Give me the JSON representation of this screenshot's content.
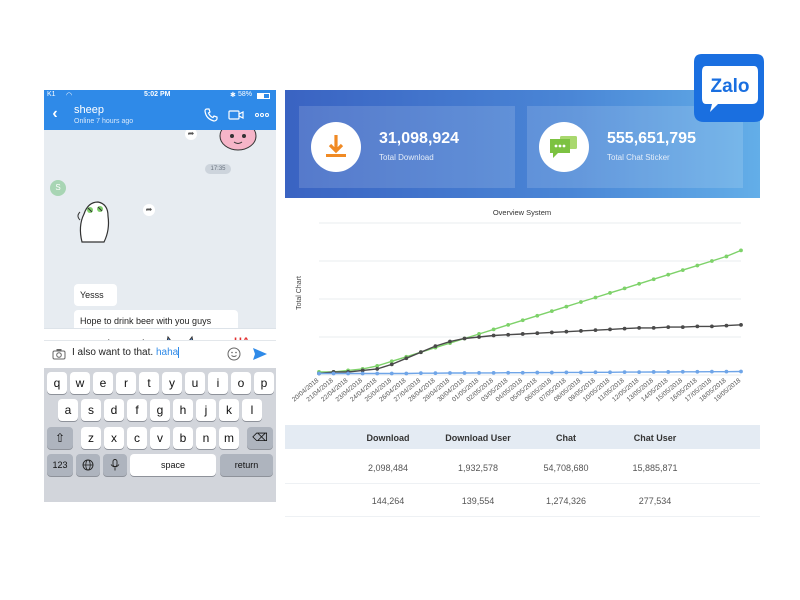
{
  "phone": {
    "status": {
      "carrier": "K1",
      "time": "5:02 PM",
      "battery": "58%"
    },
    "contact": {
      "name": "sheep",
      "status": "Online 7 hours ago"
    },
    "chat": {
      "timestamp": "17:35",
      "avatar_letter": "S",
      "messages": [
        "Yesss",
        "Hope to drink beer with you guys"
      ]
    },
    "input": {
      "text": "I also want to that.",
      "highlight": "haha"
    },
    "keyboard": {
      "row1": [
        "q",
        "w",
        "e",
        "r",
        "t",
        "y",
        "u",
        "i",
        "o",
        "p"
      ],
      "row2": [
        "a",
        "s",
        "d",
        "f",
        "g",
        "h",
        "j",
        "k",
        "l"
      ],
      "row3": [
        "z",
        "x",
        "c",
        "v",
        "b",
        "n",
        "m"
      ],
      "num_key": "123",
      "space_key": "space",
      "return_key": "return"
    }
  },
  "stats": [
    {
      "value": "31,098,924",
      "label": "Total Download",
      "icon": "download-icon"
    },
    {
      "value": "555,651,795",
      "label": "Total Chat Sticker",
      "icon": "chat-bubble-icon"
    }
  ],
  "logo": {
    "text": "Zalo",
    "color": "#1a6fe0"
  },
  "chart_data": {
    "type": "line",
    "title": "Overview System",
    "ylabel": "Total Chart",
    "x": [
      "20/04/2018",
      "21/04/2018",
      "22/04/2018",
      "23/04/2018",
      "24/04/2018",
      "25/04/2018",
      "26/04/2018",
      "27/04/2018",
      "28/04/2018",
      "29/04/2018",
      "30/04/2018",
      "01/05/2018",
      "02/05/2018",
      "03/05/2018",
      "04/05/2018",
      "05/05/2018",
      "06/05/2018",
      "07/05/2018",
      "08/05/2018",
      "09/05/2018",
      "10/05/2018",
      "11/05/2018",
      "12/05/2018",
      "13/05/2018",
      "14/05/2018",
      "15/05/2018",
      "16/05/2018",
      "17/05/2018",
      "18/05/2018",
      "19/05/2018"
    ],
    "ylim": [
      0,
      100
    ],
    "grid": true,
    "series": [
      {
        "values": [
          2,
          2,
          3,
          4,
          6,
          9,
          12,
          15,
          18,
          21,
          24,
          27,
          30,
          33,
          36,
          39,
          42,
          45,
          48,
          51,
          54,
          57,
          60,
          63,
          66,
          69,
          72,
          75,
          78,
          82
        ],
        "color": "#7ed26a"
      },
      {
        "values": [
          1,
          2,
          2,
          3,
          4,
          7,
          11,
          15,
          19,
          22,
          24,
          25,
          26,
          26.5,
          27,
          27.5,
          28,
          28.5,
          29,
          29.5,
          30,
          30.5,
          31,
          31,
          31.5,
          31.5,
          32,
          32,
          32.5,
          33
        ],
        "color": "#4a4a4a"
      },
      {
        "values": [
          1,
          1,
          1,
          1,
          1,
          1,
          1,
          1.2,
          1.2,
          1.3,
          1.3,
          1.4,
          1.4,
          1.5,
          1.5,
          1.6,
          1.6,
          1.7,
          1.7,
          1.8,
          1.8,
          1.9,
          1.9,
          2,
          2,
          2.1,
          2.1,
          2.2,
          2.2,
          2.3
        ],
        "color": "#6fa5e8"
      }
    ]
  },
  "table": {
    "headers": [
      "Download",
      "Download User",
      "Chat",
      "Chat User"
    ],
    "rows": [
      [
        "2,098,484",
        "1,932,578",
        "54,708,680",
        "15,885,871"
      ],
      [
        "144,264",
        "139,554",
        "1,274,326",
        "277,534"
      ]
    ]
  },
  "colors": {
    "zalo_blue": "#2f8ae8",
    "download_orange": "#f08a24",
    "chat_green": "#7cc241"
  }
}
